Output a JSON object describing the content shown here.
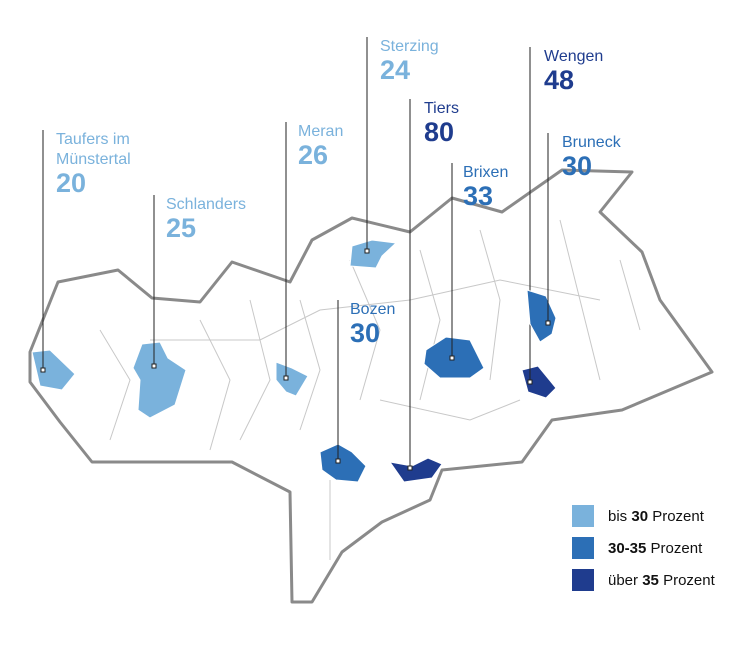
{
  "markers": [
    {
      "name": [
        "Taufers im",
        "Münstertal"
      ],
      "value": "20",
      "color": "#7ab2dc"
    },
    {
      "name": [
        "Schlanders"
      ],
      "value": "25",
      "color": "#7ab2dc"
    },
    {
      "name": [
        "Meran"
      ],
      "value": "26",
      "color": "#7ab2dc"
    },
    {
      "name": [
        "Sterzing"
      ],
      "value": "24",
      "color": "#7ab2dc"
    },
    {
      "name": [
        "Tiers"
      ],
      "value": "80",
      "color": "#1f3c8e"
    },
    {
      "name": [
        "Bozen"
      ],
      "value": "30",
      "color": "#2c6fb6"
    },
    {
      "name": [
        "Brixen"
      ],
      "value": "33",
      "color": "#2c6fb6"
    },
    {
      "name": [
        "Wengen"
      ],
      "value": "48",
      "color": "#1f3c8e"
    },
    {
      "name": [
        "Bruneck"
      ],
      "value": "30",
      "color": "#2c6fb6"
    }
  ],
  "legend": [
    {
      "prefix": "bis",
      "bold": "30",
      "suffix": "Prozent",
      "color": "#7ab2dc"
    },
    {
      "prefix": "",
      "bold": "30-35",
      "suffix": "Prozent",
      "color": "#2c6fb6"
    },
    {
      "prefix": "über",
      "bold": "35",
      "suffix": "Prozent",
      "color": "#1f3c8e"
    }
  ]
}
